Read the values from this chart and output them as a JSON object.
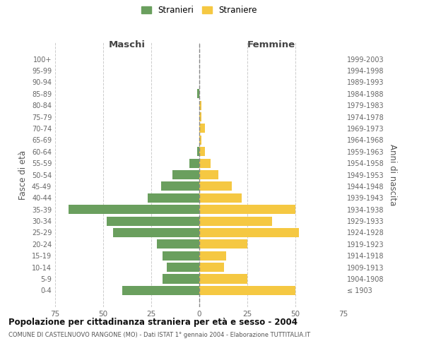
{
  "age_groups": [
    "100+",
    "95-99",
    "90-94",
    "85-89",
    "80-84",
    "75-79",
    "70-74",
    "65-69",
    "60-64",
    "55-59",
    "50-54",
    "45-49",
    "40-44",
    "35-39",
    "30-34",
    "25-29",
    "20-24",
    "15-19",
    "10-14",
    "5-9",
    "0-4"
  ],
  "birth_years": [
    "≤ 1903",
    "1904-1908",
    "1909-1913",
    "1914-1918",
    "1919-1923",
    "1924-1928",
    "1929-1933",
    "1934-1938",
    "1939-1943",
    "1944-1948",
    "1949-1953",
    "1954-1958",
    "1959-1963",
    "1964-1968",
    "1969-1973",
    "1974-1978",
    "1979-1983",
    "1984-1988",
    "1989-1993",
    "1994-1998",
    "1999-2003"
  ],
  "males": [
    0,
    0,
    0,
    1,
    0,
    0,
    0,
    0,
    1,
    5,
    14,
    20,
    27,
    68,
    48,
    45,
    22,
    19,
    17,
    19,
    40
  ],
  "females": [
    0,
    0,
    0,
    0,
    1,
    1,
    3,
    1,
    3,
    6,
    10,
    17,
    22,
    50,
    38,
    52,
    25,
    14,
    13,
    25,
    50
  ],
  "male_color": "#6a9f5e",
  "female_color": "#f5c842",
  "title": "Popolazione per cittadinanza straniera per età e sesso - 2004",
  "subtitle": "COMUNE DI CASTELNUOVO RANGONE (MO) - Dati ISTAT 1° gennaio 2004 - Elaborazione TUTTITALIA.IT",
  "ylabel_left": "Fasce di età",
  "ylabel_right": "Anni di nascita",
  "xlabel_left": "Maschi",
  "xlabel_right": "Femmine",
  "legend_male": "Stranieri",
  "legend_female": "Straniere",
  "xlim": 75,
  "background_color": "#ffffff",
  "grid_color": "#cccccc",
  "bar_height": 0.8
}
